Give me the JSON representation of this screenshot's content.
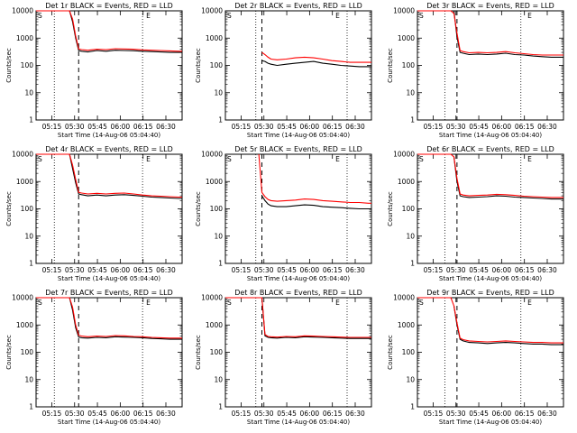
{
  "chart_data": {
    "type": "line",
    "title_suffix": "BLACK = Events, RED = LLD",
    "xlabel": "Start Time (14-Aug-06 05:04:40)",
    "ylabel": "Counts/sec",
    "y_scale": "log",
    "ylim": [
      1,
      10000
    ],
    "y_ticks": [
      1,
      10,
      100,
      1000,
      10000
    ],
    "y_tick_labels": [
      "1",
      "10",
      "100",
      "1000",
      "10000"
    ],
    "x_unit": "minutes after 05:04:40",
    "xlim": [
      0,
      96
    ],
    "x_ticks": [
      10.33,
      25.33,
      40.33,
      55.33,
      70.33,
      85.33
    ],
    "x_tick_labels": [
      "05:15",
      "05:30",
      "05:45",
      "06:00",
      "06:15",
      "06:30"
    ],
    "markers": {
      "S": "S",
      "E": "E"
    },
    "line_colors": {
      "events": "#000000",
      "lld": "#ff0000"
    },
    "time_x": [
      0,
      4,
      8,
      12,
      16,
      20,
      22,
      24,
      26,
      28,
      30,
      34,
      40,
      46,
      52,
      58,
      64,
      70,
      76,
      82,
      88,
      94,
      96
    ],
    "panels": [
      {
        "det": "Det 1r",
        "events": [
          null,
          null,
          null,
          null,
          null,
          null,
          10000,
          4000,
          1000,
          350,
          330,
          310,
          350,
          330,
          360,
          350,
          345,
          330,
          320,
          310,
          300,
          300,
          300
        ],
        "lld": [
          10000,
          10000,
          10000,
          10000,
          10000,
          10000,
          10000,
          5000,
          1200,
          400,
          380,
          360,
          390,
          380,
          410,
          400,
          390,
          370,
          360,
          350,
          340,
          330,
          330
        ],
        "vlines": {
          "dotted": [
            12,
            70
          ],
          "dashed": [
            28
          ]
        }
      },
      {
        "det": "Det 2r",
        "events": [
          null,
          null,
          null,
          null,
          null,
          null,
          null,
          150,
          140,
          120,
          110,
          100,
          110,
          120,
          130,
          140,
          120,
          110,
          100,
          95,
          90,
          90,
          90
        ],
        "lld": [
          null,
          null,
          null,
          null,
          null,
          null,
          null,
          300,
          250,
          200,
          170,
          160,
          170,
          190,
          200,
          190,
          170,
          150,
          140,
          130,
          130,
          130,
          130
        ],
        "vlines": {
          "dotted": [
            20,
            80
          ],
          "dashed": [
            24
          ]
        }
      },
      {
        "det": "Det 3r",
        "events": [
          null,
          null,
          null,
          null,
          null,
          null,
          null,
          10000,
          1100,
          300,
          280,
          250,
          260,
          250,
          260,
          280,
          250,
          240,
          220,
          210,
          200,
          200,
          200
        ],
        "lld": [
          10000,
          10000,
          10000,
          10000,
          10000,
          10000,
          10000,
          8000,
          1500,
          350,
          320,
          290,
          300,
          290,
          300,
          320,
          290,
          270,
          250,
          240,
          240,
          240,
          240
        ],
        "vlines": {
          "dotted": [
            18,
            68
          ],
          "dashed": [
            26
          ]
        }
      },
      {
        "det": "Det 4r",
        "events": [
          null,
          null,
          null,
          null,
          null,
          null,
          10000,
          3000,
          900,
          350,
          330,
          300,
          320,
          300,
          320,
          330,
          310,
          290,
          270,
          260,
          250,
          240,
          240
        ],
        "lld": [
          10000,
          10000,
          10000,
          10000,
          10000,
          10000,
          10000,
          4000,
          1200,
          400,
          380,
          350,
          370,
          350,
          370,
          380,
          350,
          320,
          300,
          290,
          280,
          270,
          270
        ],
        "vlines": {
          "dotted": [
            12,
            70
          ],
          "dashed": [
            28
          ]
        }
      },
      {
        "det": "Det 5r",
        "events": [
          null,
          null,
          null,
          null,
          null,
          null,
          null,
          300,
          200,
          150,
          130,
          120,
          120,
          130,
          140,
          135,
          120,
          115,
          110,
          105,
          100,
          100,
          100
        ],
        "lld": [
          null,
          null,
          null,
          null,
          null,
          null,
          10000,
          400,
          280,
          220,
          200,
          190,
          200,
          210,
          230,
          220,
          200,
          190,
          180,
          170,
          170,
          160,
          160
        ],
        "vlines": {
          "dotted": [
            20,
            80
          ],
          "dashed": [
            24
          ]
        }
      },
      {
        "det": "Det 6r",
        "events": [
          null,
          null,
          null,
          null,
          null,
          null,
          null,
          8000,
          1000,
          300,
          280,
          260,
          270,
          280,
          300,
          290,
          270,
          260,
          250,
          240,
          230,
          230,
          230
        ],
        "lld": [
          10000,
          10000,
          10000,
          10000,
          10000,
          10000,
          10000,
          8000,
          1300,
          350,
          320,
          300,
          310,
          320,
          340,
          330,
          310,
          290,
          280,
          270,
          260,
          260,
          260
        ],
        "vlines": {
          "dotted": [
            18,
            68
          ],
          "dashed": [
            26
          ]
        }
      },
      {
        "det": "Det 7r",
        "events": [
          null,
          null,
          null,
          null,
          null,
          null,
          10000,
          3500,
          800,
          360,
          340,
          330,
          350,
          340,
          370,
          360,
          350,
          340,
          320,
          310,
          300,
          300,
          300
        ],
        "lld": [
          10000,
          10000,
          10000,
          10000,
          10000,
          10000,
          10000,
          4500,
          1000,
          420,
          390,
          370,
          390,
          380,
          410,
          400,
          380,
          370,
          350,
          340,
          330,
          330,
          330
        ],
        "vlines": {
          "dotted": [
            12,
            70
          ],
          "dashed": [
            28
          ]
        }
      },
      {
        "det": "Det 8r",
        "events": [
          null,
          null,
          null,
          null,
          null,
          null,
          null,
          10000,
          400,
          350,
          340,
          330,
          350,
          340,
          370,
          360,
          350,
          340,
          330,
          320,
          320,
          320,
          320
        ],
        "lld": [
          10000,
          10000,
          10000,
          10000,
          10000,
          10000,
          10000,
          10000,
          450,
          380,
          370,
          360,
          380,
          370,
          400,
          390,
          380,
          370,
          360,
          350,
          350,
          350,
          350
        ],
        "vlines": {
          "dotted": [
            20,
            80
          ],
          "dashed": [
            24
          ]
        }
      },
      {
        "det": "Det 9r",
        "events": [
          null,
          null,
          null,
          null,
          null,
          null,
          null,
          5000,
          1000,
          300,
          260,
          230,
          220,
          210,
          220,
          230,
          220,
          210,
          200,
          200,
          190,
          190,
          190
        ],
        "lld": [
          10000,
          10000,
          10000,
          10000,
          10000,
          10000,
          10000,
          5000,
          1200,
          330,
          290,
          260,
          250,
          240,
          250,
          260,
          250,
          240,
          230,
          230,
          220,
          220,
          220
        ],
        "vlines": {
          "dotted": [
            18,
            68
          ],
          "dashed": [
            26
          ]
        }
      }
    ]
  }
}
